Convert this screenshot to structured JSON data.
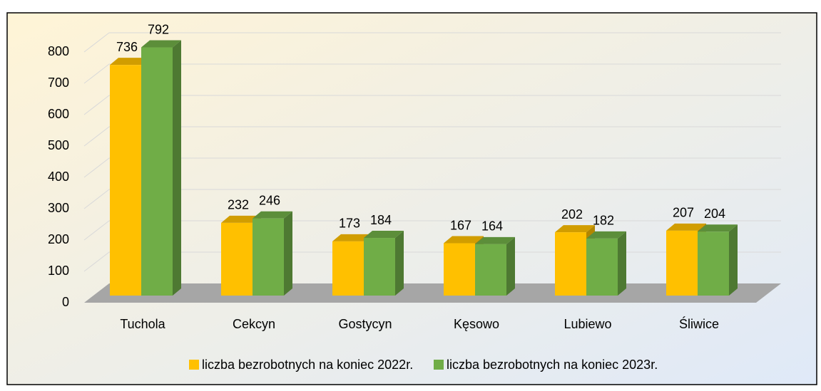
{
  "chart_data": {
    "type": "bar3d",
    "categories": [
      "Tuchola",
      "Cekcyn",
      "Gostycyn",
      "Kęsowo",
      "Lubiewo",
      "Śliwice"
    ],
    "series": [
      {
        "name": "liczba bezrobotnych na koniec 2022r.",
        "color": "#ffc000",
        "values": [
          736,
          232,
          173,
          167,
          202,
          207
        ]
      },
      {
        "name": "liczba bezrobotnych na koniec 2023r.",
        "color": "#70ad47",
        "values": [
          792,
          246,
          184,
          164,
          182,
          204
        ]
      }
    ],
    "ylim": [
      0,
      800
    ],
    "yticks": [
      0,
      100,
      200,
      300,
      400,
      500,
      600,
      700,
      800
    ],
    "grid": true,
    "legend": "bottom"
  }
}
